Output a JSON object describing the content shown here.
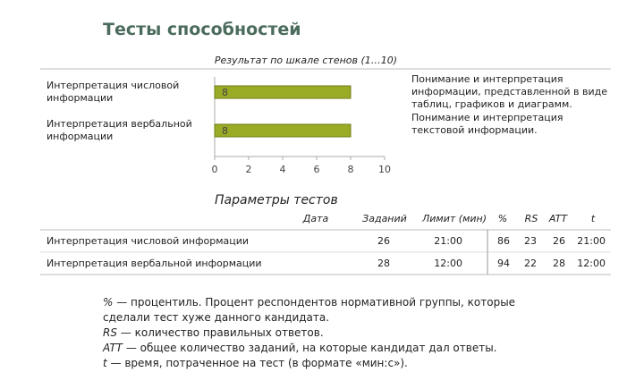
{
  "title": "Тесты способностей",
  "chart_data": {
    "type": "bar",
    "orientation": "horizontal",
    "x_label": "Результат по шкале стенов (1…10)",
    "categories": [
      "Интерпретация числовой информации",
      "Интерпретация вербальной информации"
    ],
    "values": [
      8,
      8
    ],
    "color": "#9aab26",
    "descriptions": [
      "Понимание и интерпретация информации, представленной в виде таблиц, графиков и диаграмм.",
      "Понимание и интерпретация текстовой информации."
    ],
    "xlim": [
      0,
      10
    ],
    "xticks": [
      0,
      2,
      4,
      6,
      8,
      10
    ],
    "grid": false
  },
  "table": {
    "title": "Параметры тестов",
    "columns": [
      "Дата",
      "Заданий",
      "Лимит (мин)",
      "%",
      "RS",
      "ATT",
      "t"
    ],
    "rows": [
      {
        "label": "Интерпретация числовой информации",
        "tasks": 26,
        "limit": "21:00",
        "percent": 86,
        "rs": 23,
        "att": 26,
        "t": "21:00"
      },
      {
        "label": "Интерпретация вербальной информации",
        "tasks": 28,
        "limit": "12:00",
        "percent": 94,
        "rs": 22,
        "att": 28,
        "t": "12:00"
      }
    ]
  },
  "notes": [
    {
      "term": "%",
      "text": "— процентиль. Процент респондентов нормативной группы, которые сделали тест хуже данного кандидата."
    },
    {
      "term": "RS",
      "text": "— количество правильных ответов."
    },
    {
      "term": "ATT",
      "text": "— общее количество заданий, на которые кандидат дал ответы."
    },
    {
      "term": "t",
      "text": "— время, потраченное на тест (в формате «мин:с»)."
    }
  ]
}
